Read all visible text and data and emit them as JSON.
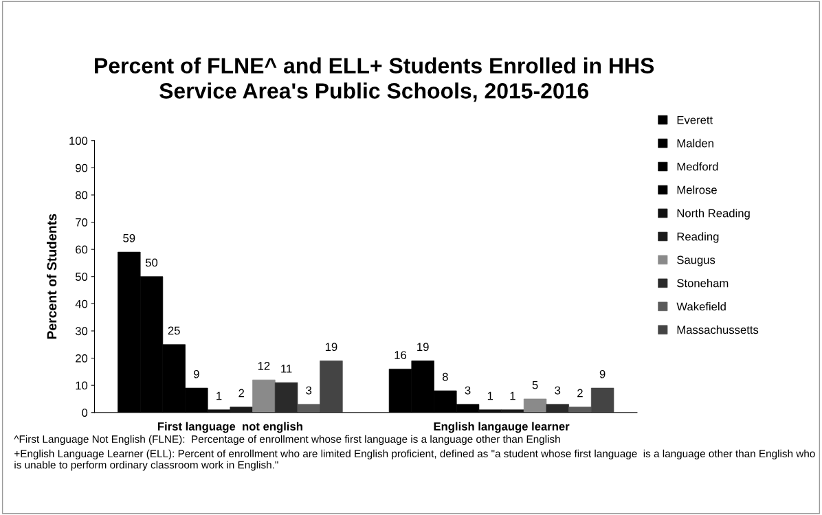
{
  "chart_data": {
    "type": "bar",
    "title": "Percent of FLNE^ and ELL+ Students Enrolled in HHS\nService Area's Public Schools, 2015-2016",
    "ylabel": "Percent of Students",
    "categories": [
      "First language  not english",
      "English langauge learner"
    ],
    "series": [
      {
        "name": "Everett",
        "color": "#000000",
        "values": [
          59,
          16
        ]
      },
      {
        "name": "Malden",
        "color": "#000000",
        "values": [
          50,
          19
        ]
      },
      {
        "name": "Medford",
        "color": "#000000",
        "values": [
          25,
          8
        ]
      },
      {
        "name": "Melrose",
        "color": "#000000",
        "values": [
          9,
          3
        ]
      },
      {
        "name": "North Reading",
        "color": "#111111",
        "values": [
          1,
          1
        ]
      },
      {
        "name": "Reading",
        "color": "#1a1a1a",
        "values": [
          2,
          1
        ]
      },
      {
        "name": "Saugus",
        "color": "#8a8a8a",
        "values": [
          12,
          5
        ]
      },
      {
        "name": "Stoneham",
        "color": "#2a2a2a",
        "values": [
          11,
          3
        ]
      },
      {
        "name": "Wakefield",
        "color": "#5a5a5a",
        "values": [
          3,
          2
        ]
      },
      {
        "name": "Massachussetts",
        "color": "#444444",
        "values": [
          19,
          9
        ]
      }
    ],
    "ylim": [
      0,
      100
    ],
    "yticks": [
      0,
      10,
      20,
      30,
      40,
      50,
      60,
      70,
      80,
      90,
      100
    ],
    "data_labels": true,
    "grid": false,
    "legend": "right",
    "annotations": [
      "^First Language Not English (FLNE):  Percentage of enrollment whose first language is a language other than English",
      "+English Language Learner (ELL): Percent of enrollment who are limited English proficient, defined as \"a student whose first language  is a language other than English who is unable to perform ordinary classroom work in English.\""
    ]
  }
}
